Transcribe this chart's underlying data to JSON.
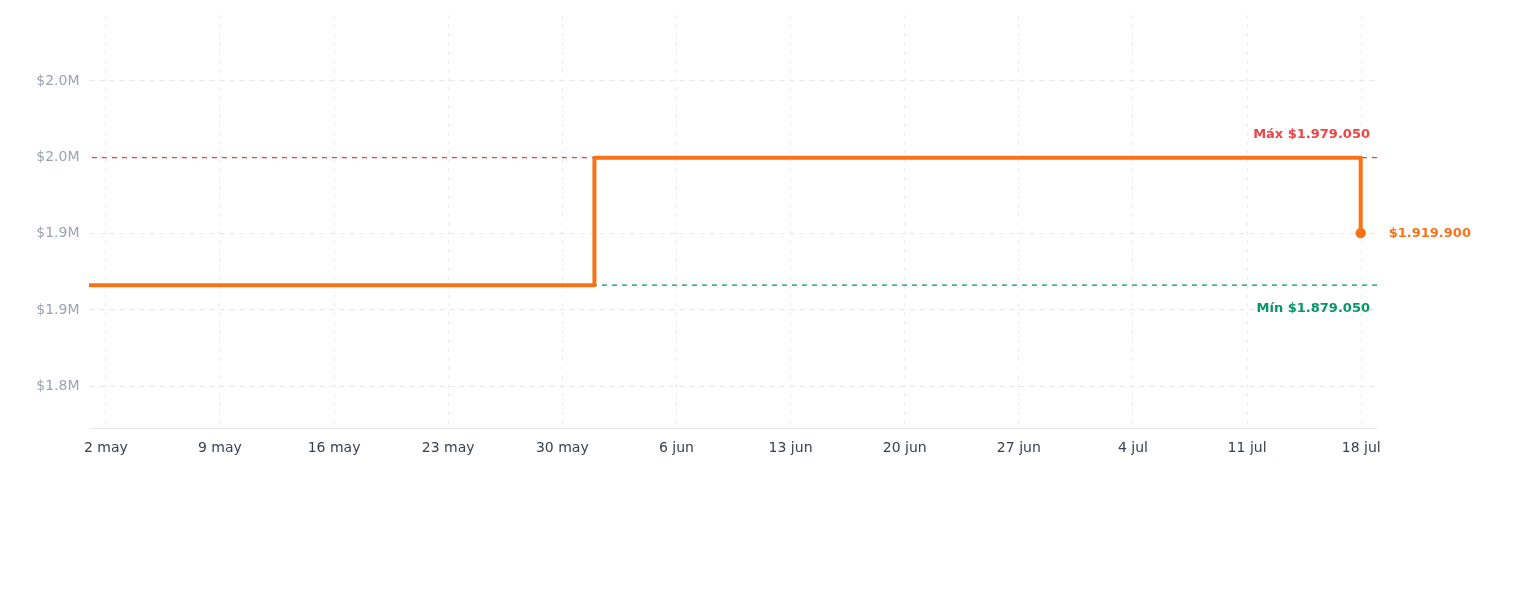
{
  "chart_data": {
    "type": "step",
    "x": [
      "--05-01",
      "--06-01",
      "--07-18"
    ],
    "series": [
      {
        "color": "#f97316",
        "values": [
          1879050,
          1979050,
          1919900
        ]
      }
    ],
    "xlim": [
      "--05-01",
      "--07-19"
    ],
    "xticks": [
      {
        "value": "--05-02",
        "label": "2 may"
      },
      {
        "value": "--05-09",
        "label": "9 may"
      },
      {
        "value": "--05-16",
        "label": "16 may"
      },
      {
        "value": "--05-23",
        "label": "23 may"
      },
      {
        "value": "--05-30",
        "label": "30 may"
      },
      {
        "value": "--06-06",
        "label": "6 jun"
      },
      {
        "value": "--06-13",
        "label": "13 jun"
      },
      {
        "value": "--06-20",
        "label": "20 jun"
      },
      {
        "value": "--06-27",
        "label": "27 jun"
      },
      {
        "value": "--07-04",
        "label": "4 jul"
      },
      {
        "value": "--07-11",
        "label": "11 jul"
      },
      {
        "value": "--07-18",
        "label": "18 jul"
      }
    ],
    "ylim": [
      1767000,
      2091000
    ],
    "yticks": [
      {
        "value": 1800000,
        "label": "$1.8M"
      },
      {
        "value": 1860000,
        "label": "$1.9M"
      },
      {
        "value": 1920000,
        "label": "$1.9M"
      },
      {
        "value": 1980000,
        "label": "$2.0M"
      },
      {
        "value": 2040000,
        "label": "$2.0M"
      }
    ],
    "grid": true,
    "ref_lines": [
      {
        "axis": "y",
        "value": 1979050,
        "label": "Máx $1.979.050",
        "color": "#ef4444",
        "line_style": "dashed"
      },
      {
        "axis": "y",
        "value": 1879050,
        "label": "Mín $1.879.050",
        "color": "#059669",
        "line_style": "dashed"
      }
    ],
    "annotations": [
      {
        "text": "$1.919.900",
        "x": "--07-18",
        "y": 1919900
      }
    ]
  }
}
